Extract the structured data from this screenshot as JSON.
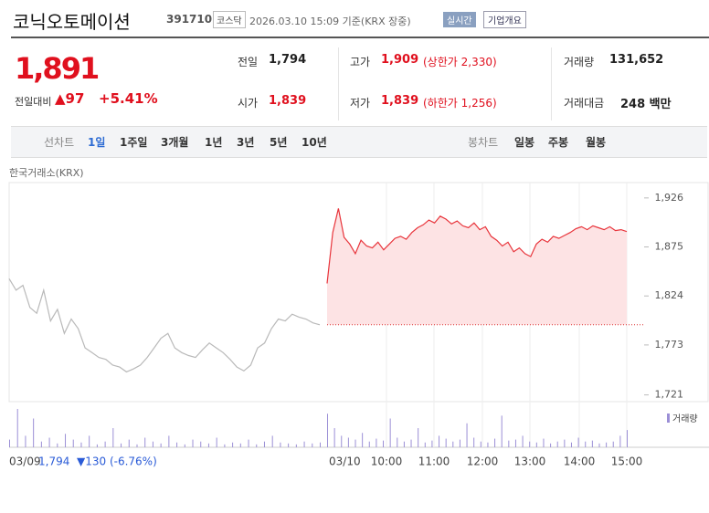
{
  "header": {
    "title": "코닉오토메이션",
    "code": "391710",
    "market": "코스닥",
    "time": "2026.03.10 15:09 기준(KRX 장중)",
    "realtime": "실시간",
    "overview": "기업개요"
  },
  "quote": {
    "price": "1,891",
    "change_label": "전일대비",
    "change": "▲97",
    "rate": "+5.41%"
  },
  "stats": [
    {
      "label": "전일",
      "value": "1,794"
    },
    {
      "label": "고가",
      "value": "1,909",
      "note": "(상한가 2,330)"
    },
    {
      "label": "거래량",
      "value": "131,652"
    },
    {
      "label": "시가",
      "value": "1,839"
    },
    {
      "label": "저가",
      "value": "1,839",
      "note": "(하한가 1,256)"
    },
    {
      "label": "거래대금",
      "value": "248 백만"
    }
  ],
  "tabs": {
    "line_label": "선차트",
    "periods": [
      "1일",
      "1주일",
      "3개월",
      "1년",
      "3년",
      "5년",
      "10년"
    ],
    "candle_label": "봉차트",
    "candles": [
      "일봉",
      "주봉",
      "월봉"
    ]
  },
  "chart_data": {
    "type": "line",
    "source": "한국거래소(KRX)",
    "x_labels": [
      "03/09",
      "03/10",
      "10:00",
      "11:00",
      "12:00",
      "13:00",
      "14:00",
      "15:00"
    ],
    "prev_summary": {
      "close": "1,794",
      "change": "▼130 (-6.76%)"
    },
    "ylim": [
      1714,
      1942
    ],
    "yticks": [
      {
        "value": 1926,
        "label": "1,926"
      },
      {
        "value": 1875,
        "label": "1,875"
      },
      {
        "value": 1824,
        "label": "1,824"
      },
      {
        "value": 1773,
        "label": "1,773"
      },
      {
        "value": 1721,
        "label": "1,721"
      }
    ],
    "baseline": 1794,
    "series": [
      {
        "color": "#b9b9b9",
        "values": [
          1842,
          1830,
          1835,
          1812,
          1806,
          1830,
          1798,
          1810,
          1785,
          1800,
          1790,
          1770,
          1765,
          1760,
          1758,
          1752,
          1750,
          1745,
          1748,
          1752,
          1760,
          1770,
          1780,
          1785,
          1770,
          1765,
          1762,
          1760,
          1768,
          1775,
          1770,
          1765,
          1758,
          1750,
          1746,
          1752,
          1770,
          1775,
          1790,
          1800,
          1798,
          1805,
          1802,
          1800,
          1796,
          1794
        ]
      },
      {
        "color": "#e8343b",
        "fill": "#fde3e4",
        "values": [
          1837,
          1890,
          1915,
          1885,
          1878,
          1868,
          1882,
          1876,
          1874,
          1880,
          1872,
          1878,
          1884,
          1886,
          1883,
          1890,
          1895,
          1898,
          1903,
          1900,
          1907,
          1904,
          1899,
          1902,
          1897,
          1895,
          1900,
          1893,
          1896,
          1886,
          1882,
          1876,
          1880,
          1870,
          1874,
          1868,
          1865,
          1878,
          1883,
          1880,
          1886,
          1884,
          1887,
          1890,
          1894,
          1896,
          1893,
          1897,
          1895,
          1893,
          1896,
          1892,
          1893,
          1891
        ]
      }
    ],
    "volume": {
      "name": "거래량",
      "color": "#9b8fd6",
      "prev": [
        8,
        40,
        12,
        30,
        6,
        10,
        4,
        14,
        8,
        5,
        12,
        3,
        6,
        20,
        4,
        8,
        3,
        10,
        6,
        4,
        12,
        5,
        3,
        8,
        6,
        4,
        10,
        3,
        5,
        4,
        8,
        3,
        6,
        12,
        5,
        4,
        3,
        6,
        4,
        5
      ],
      "today": [
        35,
        20,
        12,
        10,
        8,
        15,
        6,
        9,
        7,
        30,
        10,
        6,
        8,
        20,
        5,
        7,
        12,
        9,
        6,
        8,
        25,
        10,
        6,
        5,
        9,
        33,
        7,
        8,
        12,
        6,
        5,
        9,
        4,
        6,
        8,
        5,
        10,
        6,
        7,
        4,
        5,
        6,
        12,
        18
      ]
    }
  }
}
